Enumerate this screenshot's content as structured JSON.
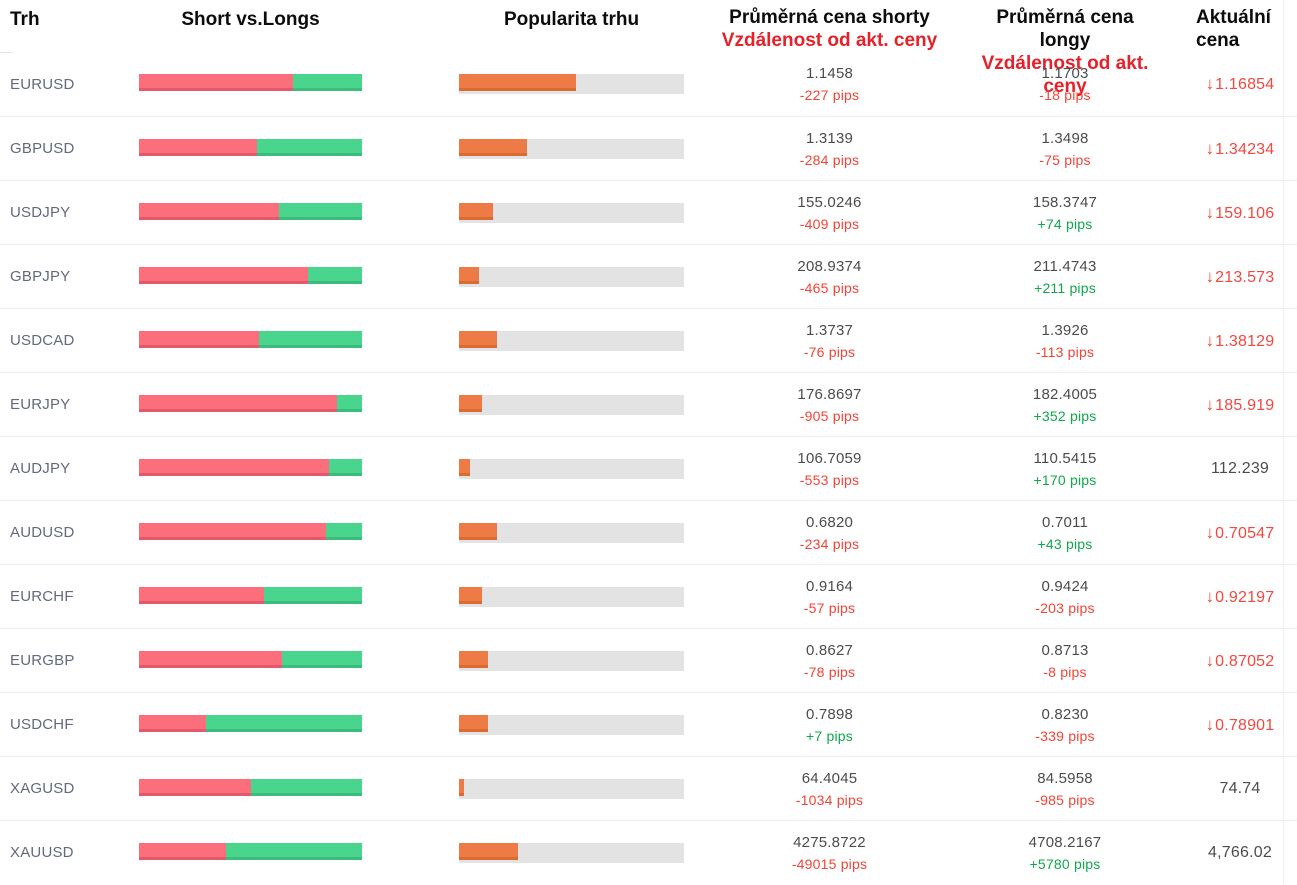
{
  "colors": {
    "short": "#fc6e7b",
    "short_dark": "#e25a6b",
    "long": "#49d58d",
    "long_dark": "#3cbd7b",
    "popularity": "#ee7a45",
    "popularity_dark": "#da6b33",
    "track": "#e3e3e3",
    "header_red": "#e62129",
    "pips_down": "#f44336",
    "pips_up": "#0fa94a",
    "price_down": "#f4473f"
  },
  "table": {
    "columns": {
      "market": "Trh",
      "short_vs_longs": "Short vs.Longs",
      "popularity": "Popularita trhu",
      "avg_short_line1": "Průměrná cena shorty",
      "avg_short_line2": "Vzdálenost od akt. ceny",
      "avg_long_line1": "Průměrná cena longy",
      "avg_long_line2": "Vzdálenost od akt. ceny",
      "current_line1": "Aktuální",
      "current_line2": "cena"
    },
    "rows": [
      {
        "market": "EURUSD",
        "short_pct": 69,
        "long_pct": 31,
        "popularity_pct": 52,
        "short_price": "1.1458",
        "short_pips": "-227 pips",
        "long_price": "1.1703",
        "long_pips": "-18 pips",
        "current": "1.16854",
        "current_dir": "down"
      },
      {
        "market": "GBPUSD",
        "short_pct": 53,
        "long_pct": 47,
        "popularity_pct": 30,
        "short_price": "1.3139",
        "short_pips": "-284 pips",
        "long_price": "1.3498",
        "long_pips": "-75 pips",
        "current": "1.34234",
        "current_dir": "down"
      },
      {
        "market": "USDJPY",
        "short_pct": 63,
        "long_pct": 37,
        "popularity_pct": 15,
        "short_price": "155.0246",
        "short_pips": "-409 pips",
        "long_price": "158.3747",
        "long_pips": "+74 pips",
        "current": "159.106",
        "current_dir": "down"
      },
      {
        "market": "GBPJPY",
        "short_pct": 76,
        "long_pct": 24,
        "popularity_pct": 9,
        "short_price": "208.9374",
        "short_pips": "-465 pips",
        "long_price": "211.4743",
        "long_pips": "+211 pips",
        "current": "213.573",
        "current_dir": "down"
      },
      {
        "market": "USDCAD",
        "short_pct": 54,
        "long_pct": 46,
        "popularity_pct": 17,
        "short_price": "1.3737",
        "short_pips": "-76 pips",
        "long_price": "1.3926",
        "long_pips": "-113 pips",
        "current": "1.38129",
        "current_dir": "down"
      },
      {
        "market": "EURJPY",
        "short_pct": 89,
        "long_pct": 11,
        "popularity_pct": 10,
        "short_price": "176.8697",
        "short_pips": "-905 pips",
        "long_price": "182.4005",
        "long_pips": "+352 pips",
        "current": "185.919",
        "current_dir": "down"
      },
      {
        "market": "AUDJPY",
        "short_pct": 85,
        "long_pct": 15,
        "popularity_pct": 5,
        "short_price": "106.7059",
        "short_pips": "-553 pips",
        "long_price": "110.5415",
        "long_pips": "+170 pips",
        "current": "112.239",
        "current_dir": "flat"
      },
      {
        "market": "AUDUSD",
        "short_pct": 84,
        "long_pct": 16,
        "popularity_pct": 17,
        "short_price": "0.6820",
        "short_pips": "-234 pips",
        "long_price": "0.7011",
        "long_pips": "+43 pips",
        "current": "0.70547",
        "current_dir": "down"
      },
      {
        "market": "EURCHF",
        "short_pct": 56,
        "long_pct": 44,
        "popularity_pct": 10,
        "short_price": "0.9164",
        "short_pips": "-57 pips",
        "long_price": "0.9424",
        "long_pips": "-203 pips",
        "current": "0.92197",
        "current_dir": "down"
      },
      {
        "market": "EURGBP",
        "short_pct": 64,
        "long_pct": 36,
        "popularity_pct": 13,
        "short_price": "0.8627",
        "short_pips": "-78 pips",
        "long_price": "0.8713",
        "long_pips": "-8 pips",
        "current": "0.87052",
        "current_dir": "down"
      },
      {
        "market": "USDCHF",
        "short_pct": 30,
        "long_pct": 70,
        "popularity_pct": 13,
        "short_price": "0.7898",
        "short_pips": "+7 pips",
        "long_price": "0.8230",
        "long_pips": "-339 pips",
        "current": "0.78901",
        "current_dir": "down"
      },
      {
        "market": "XAGUSD",
        "short_pct": 50,
        "long_pct": 50,
        "popularity_pct": 2,
        "short_price": "64.4045",
        "short_pips": "-1034 pips",
        "long_price": "84.5958",
        "long_pips": "-985 pips",
        "current": "74.74",
        "current_dir": "flat"
      },
      {
        "market": "XAUUSD",
        "short_pct": 39,
        "long_pct": 61,
        "popularity_pct": 26,
        "short_price": "4275.8722",
        "short_pips": "-49015 pips",
        "long_price": "4708.2167",
        "long_pips": "+5780 pips",
        "current": "4,766.02",
        "current_dir": "flat"
      }
    ]
  }
}
